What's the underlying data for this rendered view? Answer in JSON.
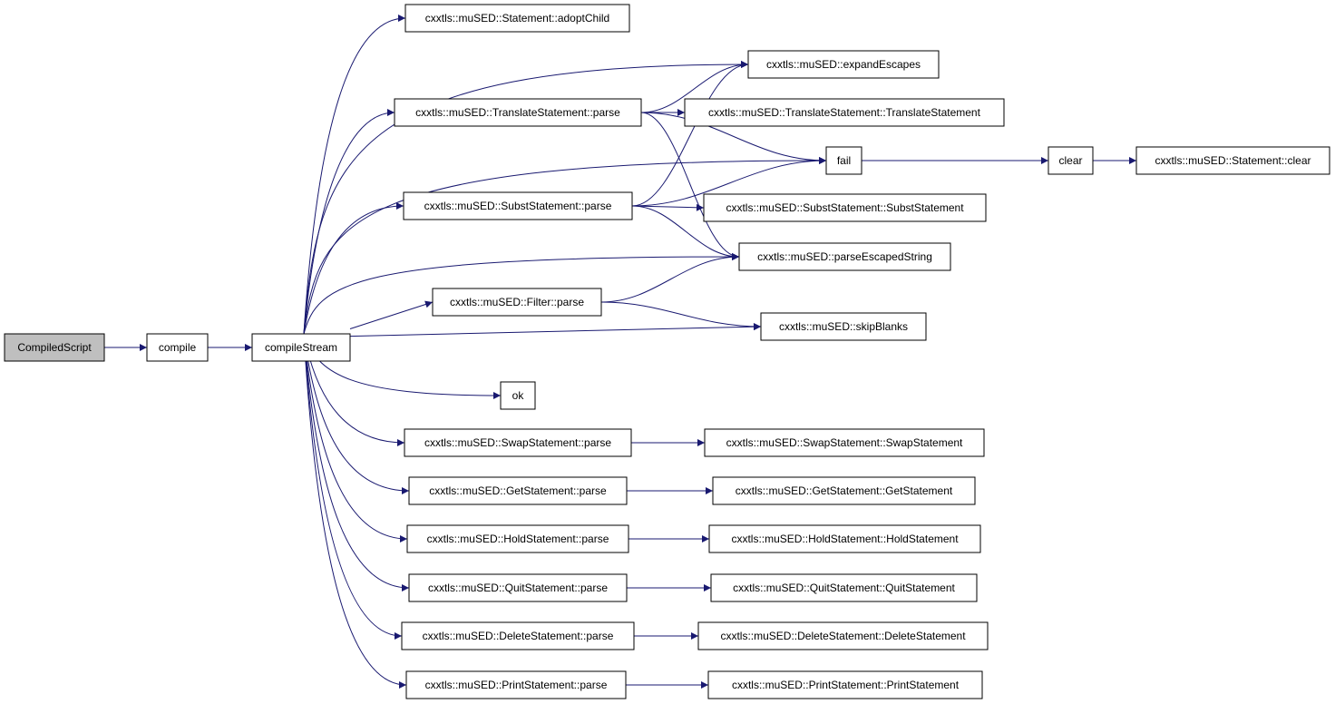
{
  "nodes": [
    {
      "label": "CompiledScript"
    },
    {
      "label": "compile"
    },
    {
      "label": "compileStream"
    },
    {
      "label": "cxxtls::muSED::Statement::adoptChild"
    },
    {
      "label": "cxxtls::muSED::expandEscapes"
    },
    {
      "label": "cxxtls::muSED::TranslateStatement::parse"
    },
    {
      "label": "cxxtls::muSED::TranslateStatement::TranslateStatement"
    },
    {
      "label": "fail"
    },
    {
      "label": "clear"
    },
    {
      "label": "cxxtls::muSED::Statement::clear"
    },
    {
      "label": "cxxtls::muSED::SubstStatement::parse"
    },
    {
      "label": "cxxtls::muSED::SubstStatement::SubstStatement"
    },
    {
      "label": "cxxtls::muSED::parseEscapedString"
    },
    {
      "label": "cxxtls::muSED::Filter::parse"
    },
    {
      "label": "cxxtls::muSED::skipBlanks"
    },
    {
      "label": "ok"
    },
    {
      "label": "cxxtls::muSED::SwapStatement::parse"
    },
    {
      "label": "cxxtls::muSED::SwapStatement::SwapStatement"
    },
    {
      "label": "cxxtls::muSED::GetStatement::parse"
    },
    {
      "label": "cxxtls::muSED::GetStatement::GetStatement"
    },
    {
      "label": "cxxtls::muSED::HoldStatement::parse"
    },
    {
      "label": "cxxtls::muSED::HoldStatement::HoldStatement"
    },
    {
      "label": "cxxtls::muSED::QuitStatement::parse"
    },
    {
      "label": "cxxtls::muSED::QuitStatement::QuitStatement"
    },
    {
      "label": "cxxtls::muSED::DeleteStatement::parse"
    },
    {
      "label": "cxxtls::muSED::DeleteStatement::DeleteStatement"
    },
    {
      "label": "cxxtls::muSED::PrintStatement::parse"
    },
    {
      "label": "cxxtls::muSED::PrintStatement::PrintStatement"
    }
  ]
}
